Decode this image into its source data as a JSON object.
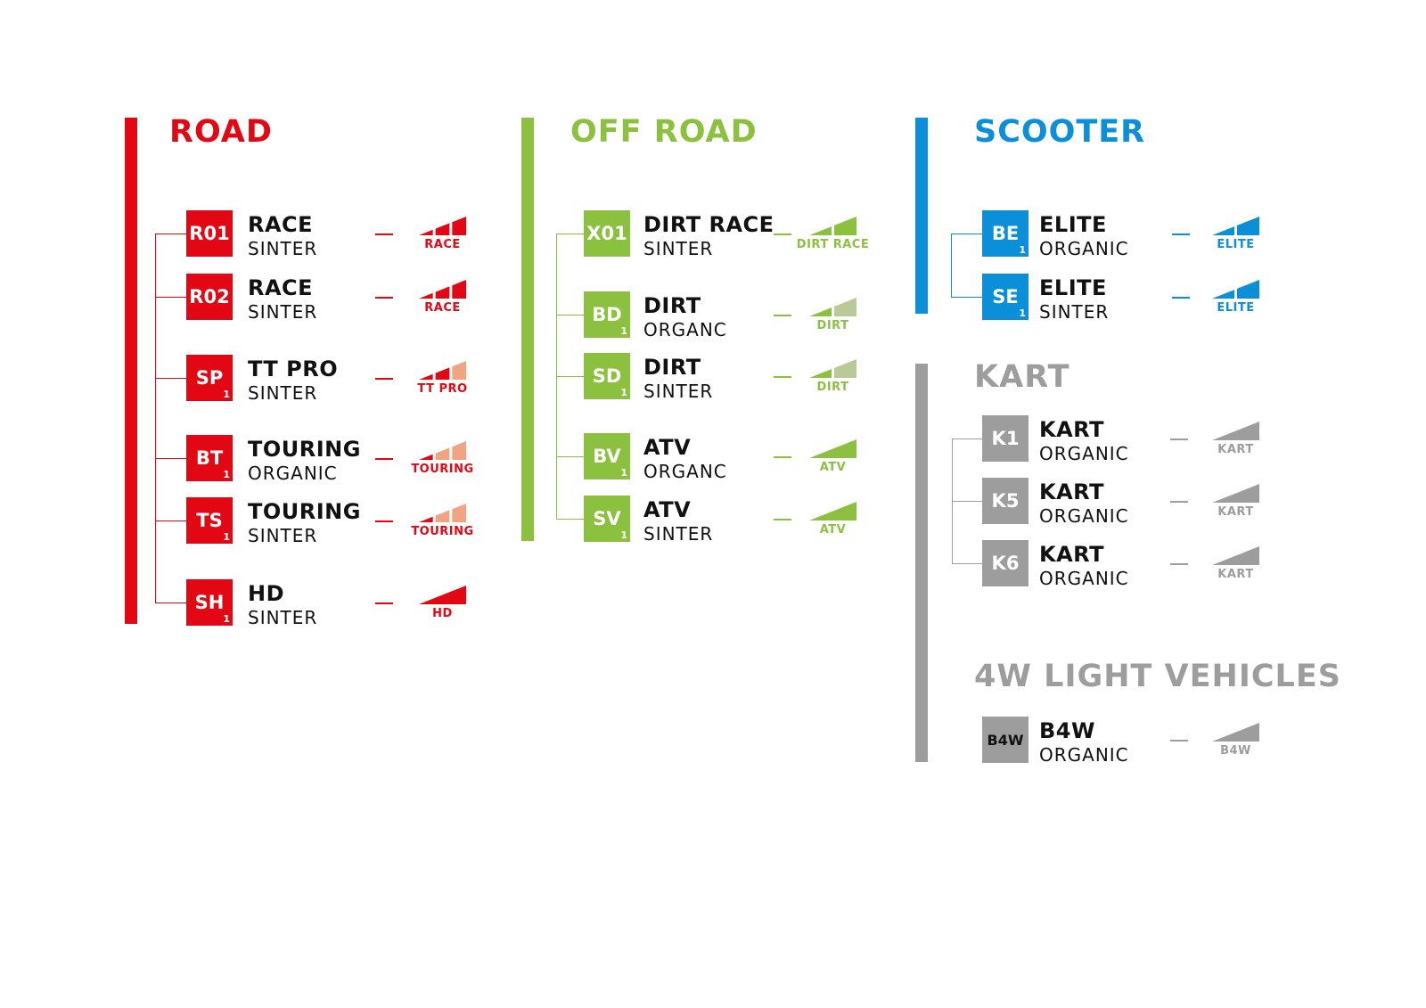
{
  "colors": {
    "road": "#e30613",
    "road_light": "#f2a382",
    "offroad": "#8cc13f",
    "offroad_light": "#b9c998",
    "scooter": "#0b8fd8",
    "gray": "#9d9d9d"
  },
  "sections": [
    {
      "id": "road",
      "title": "ROAD",
      "color": "#e30613",
      "light": "#f2a382",
      "entries": [
        {
          "code": "R01",
          "sub": "",
          "name": "RACE",
          "material": "SINTER",
          "rating_label": "RACE",
          "rating": [
            "full",
            "full",
            "full"
          ]
        },
        {
          "code": "R02",
          "sub": "",
          "name": "RACE",
          "material": "SINTER",
          "rating_label": "RACE",
          "rating": [
            "full",
            "full",
            "full"
          ]
        },
        {
          "code": "SP",
          "sub": "1",
          "name": "TT PRO",
          "material": "SINTER",
          "rating_label": "TT PRO",
          "rating": [
            "full",
            "full",
            "light"
          ]
        },
        {
          "code": "BT",
          "sub": "1",
          "name": "TOURING",
          "material": "ORGANIC",
          "rating_label": "TOURING",
          "rating": [
            "full",
            "light",
            "light"
          ]
        },
        {
          "code": "TS",
          "sub": "1",
          "name": "TOURING",
          "material": "SINTER",
          "rating_label": "TOURING",
          "rating": [
            "full",
            "light",
            "light"
          ]
        },
        {
          "code": "SH",
          "sub": "1",
          "name": "HD",
          "material": "SINTER",
          "rating_label": "HD",
          "rating": [
            "full"
          ]
        }
      ]
    },
    {
      "id": "offroad",
      "title": "OFF ROAD",
      "color": "#8cc13f",
      "light": "#b9c998",
      "entries": [
        {
          "code": "X01",
          "sub": "",
          "name": "DIRT RACE",
          "material": "SINTER",
          "rating_label": "DIRT RACE",
          "rating": [
            "full",
            "full"
          ]
        },
        {
          "code": "BD",
          "sub": "1",
          "name": "DIRT",
          "material": "ORGANC",
          "rating_label": "DIRT",
          "rating": [
            "full",
            "light"
          ]
        },
        {
          "code": "SD",
          "sub": "1",
          "name": "DIRT",
          "material": "SINTER",
          "rating_label": "DIRT",
          "rating": [
            "full",
            "light"
          ]
        },
        {
          "code": "BV",
          "sub": "1",
          "name": "ATV",
          "material": "ORGANC",
          "rating_label": "ATV",
          "rating": [
            "full"
          ]
        },
        {
          "code": "SV",
          "sub": "1",
          "name": "ATV",
          "material": "SINTER",
          "rating_label": "ATV",
          "rating": [
            "full"
          ]
        }
      ]
    },
    {
      "id": "scooter",
      "title": "SCOOTER",
      "color": "#0b8fd8",
      "light": "#0b8fd8",
      "entries": [
        {
          "code": "BE",
          "sub": "1",
          "name": "ELITE",
          "material": "ORGANIC",
          "rating_label": "ELITE",
          "rating": [
            "full",
            "full"
          ]
        },
        {
          "code": "SE",
          "sub": "1",
          "name": "ELITE",
          "material": "SINTER",
          "rating_label": "ELITE",
          "rating": [
            "full",
            "full"
          ]
        }
      ]
    },
    {
      "id": "kart",
      "title": "KART",
      "color": "#9d9d9d",
      "light": "#9d9d9d",
      "entries": [
        {
          "code": "K1",
          "sub": "",
          "name": "KART",
          "material": "ORGANIC",
          "rating_label": "KART",
          "rating": [
            "full"
          ]
        },
        {
          "code": "K5",
          "sub": "",
          "name": "KART",
          "material": "ORGANIC",
          "rating_label": "KART",
          "rating": [
            "full"
          ]
        },
        {
          "code": "K6",
          "sub": "",
          "name": "KART",
          "material": "ORGANIC",
          "rating_label": "KART",
          "rating": [
            "full"
          ]
        }
      ]
    },
    {
      "id": "light4w",
      "title": "4W LIGHT VEHICLES",
      "color": "#9d9d9d",
      "light": "#9d9d9d",
      "entries": [
        {
          "code": "B4W",
          "sub": "",
          "name": "B4W",
          "material": "ORGANIC",
          "rating_label": "B4W",
          "rating": [
            "full"
          ]
        }
      ]
    }
  ]
}
